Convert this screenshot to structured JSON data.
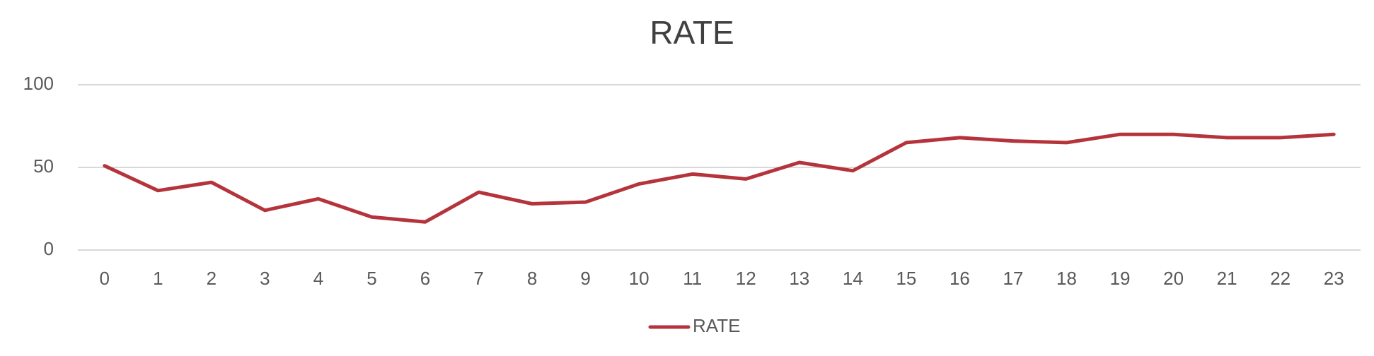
{
  "chart_data": {
    "type": "line",
    "title": "RATE",
    "categories": [
      "0",
      "1",
      "2",
      "3",
      "4",
      "5",
      "6",
      "7",
      "8",
      "9",
      "10",
      "11",
      "12",
      "13",
      "14",
      "15",
      "16",
      "17",
      "18",
      "19",
      "20",
      "21",
      "22",
      "23"
    ],
    "series": [
      {
        "name": "RATE",
        "color": "#b5343c",
        "values": [
          51,
          36,
          41,
          24,
          31,
          20,
          17,
          35,
          28,
          29,
          40,
          46,
          43,
          53,
          48,
          65,
          68,
          66,
          65,
          70,
          70,
          68,
          68,
          70
        ]
      }
    ],
    "ylim": [
      0,
      100
    ],
    "yticks": [
      0,
      50,
      100
    ],
    "grid": true,
    "legend": "bottom"
  }
}
